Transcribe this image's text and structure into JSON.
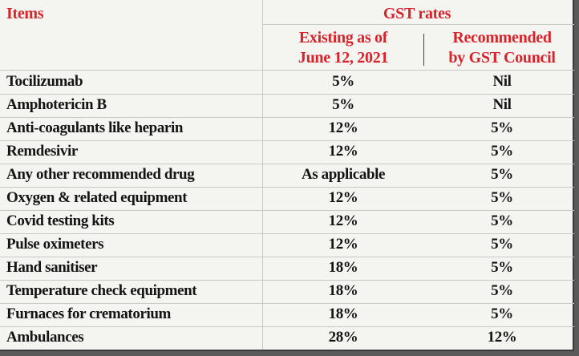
{
  "header": {
    "items_label": "Items",
    "gst_rates_label": "GST rates",
    "existing_label_line1": "Existing as of",
    "existing_label_line2": "June 12, 2021",
    "recommended_label_line1": "Recommended",
    "recommended_label_line2": "by GST Council"
  },
  "rows": [
    {
      "item": "Tocilizumab",
      "existing": "5%",
      "recommended": "Nil"
    },
    {
      "item": "Amphotericin B",
      "existing": "5%",
      "recommended": "Nil"
    },
    {
      "item": "Anti-coagulants like heparin",
      "existing": "12%",
      "recommended": "5%"
    },
    {
      "item": "Remdesivir",
      "existing": "12%",
      "recommended": "5%"
    },
    {
      "item": "Any other recommended drug",
      "existing": "As applicable",
      "recommended": "5%"
    },
    {
      "item": "Oxygen & related equipment",
      "existing": "12%",
      "recommended": "5%"
    },
    {
      "item": "Covid testing kits",
      "existing": "12%",
      "recommended": "5%"
    },
    {
      "item": "Pulse oximeters",
      "existing": "12%",
      "recommended": "5%"
    },
    {
      "item": "Hand sanitiser",
      "existing": "18%",
      "recommended": "5%"
    },
    {
      "item": "Temperature check equipment",
      "existing": "18%",
      "recommended": "5%"
    },
    {
      "item": "Furnaces for crematorium",
      "existing": "18%",
      "recommended": "5%"
    },
    {
      "item": "Ambulances",
      "existing": "28%",
      "recommended": "12%"
    }
  ],
  "colors": {
    "header_text": "#d8232a",
    "body_text": "#141414",
    "background": "#f4f4f1"
  }
}
